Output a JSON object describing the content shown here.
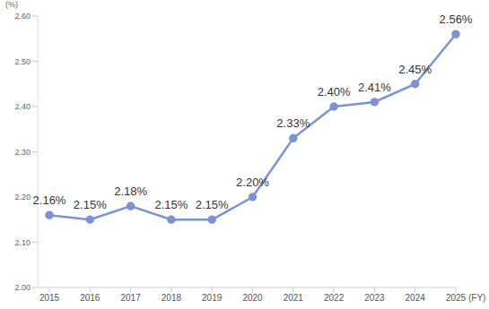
{
  "chart_data": {
    "type": "line",
    "categories": [
      "2015",
      "2016",
      "2017",
      "2018",
      "2019",
      "2020",
      "2021",
      "2022",
      "2023",
      "2024",
      "2025"
    ],
    "x_label": "(FY)",
    "y_label": "(%)",
    "values": [
      2.16,
      2.15,
      2.18,
      2.15,
      2.15,
      2.2,
      2.33,
      2.4,
      2.41,
      2.45,
      2.56
    ],
    "value_labels": [
      "2.16%",
      "2.15%",
      "2.18%",
      "2.15%",
      "2.15%",
      "2.20%",
      "2.33%",
      "2.40%",
      "2.41%",
      "2.45%",
      "2.56%"
    ],
    "color": "#7b93d6",
    "ylim": [
      2,
      2.6
    ],
    "yticks": [
      {
        "value": 2,
        "label": "2.00"
      },
      {
        "value": 2.1,
        "label": "2.10"
      },
      {
        "value": 2.2,
        "label": "2.20"
      },
      {
        "value": 2.3,
        "label": "2.30"
      },
      {
        "value": 2.4,
        "label": "2.40"
      },
      {
        "value": 2.5,
        "label": "2.50"
      },
      {
        "value": 2.6,
        "label": "2.60"
      }
    ],
    "grid": false,
    "data_labels": true,
    "marker": "circle",
    "line_style": "solid"
  }
}
